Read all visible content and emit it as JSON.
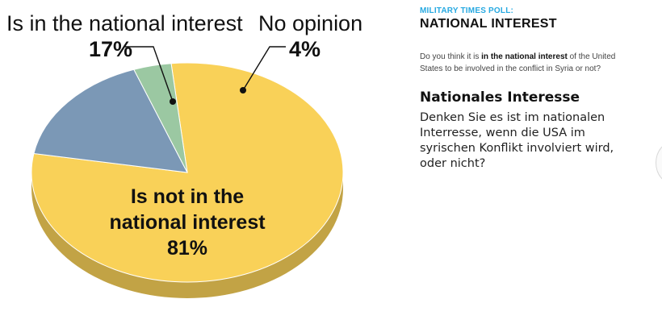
{
  "chart_data": {
    "type": "pie",
    "slices": [
      {
        "label": "Is not in the national interest",
        "value": 81,
        "value_label": "81%",
        "color": "#f9d158"
      },
      {
        "label": "Is in the national interest",
        "value": 17,
        "value_label": "17%",
        "color": "#7b98b6"
      },
      {
        "label": "No opinion",
        "value": 4,
        "value_label": "4%",
        "color": "#9bc8a2"
      }
    ],
    "annotations": {
      "not_interest_line1": "Is not in the",
      "not_interest_line2": "national interest",
      "not_interest_value": "81%",
      "interest_label": "Is in the national interest",
      "interest_value": "17%",
      "noop_label": "No opinion",
      "noop_value": "4%"
    }
  },
  "panel": {
    "kicker": "MILITARY TIMES POLL:",
    "title": "NATIONAL INTEREST",
    "question_pre": "Do you think it is ",
    "question_bold": "in the national interest",
    "question_post": " of the United States to be involved in the conflict in Syria or not?",
    "de_title": "Nationales Interesse",
    "de_body": "Denken Sie es ist im nationalen Interresse, wenn die USA im syrischen Konflikt involviert wird, oder nicht?"
  }
}
